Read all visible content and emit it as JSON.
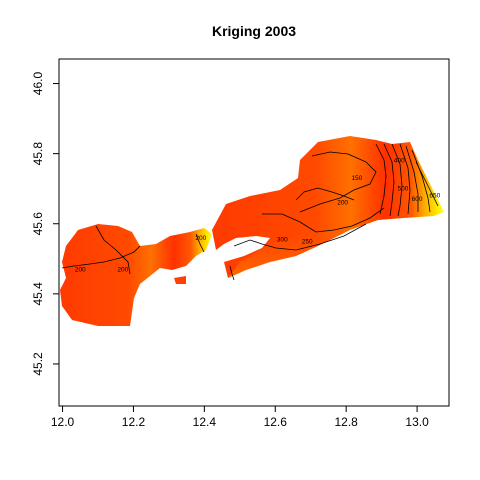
{
  "chart_data": {
    "type": "heatmap",
    "title": "Kriging 2003",
    "xlabel": "",
    "ylabel": "",
    "xlim": [
      11.99,
      13.09
    ],
    "ylim": [
      45.08,
      46.07
    ],
    "x_ticks": [
      12.0,
      12.2,
      12.4,
      12.6,
      12.8,
      13.0
    ],
    "x_tick_labels": [
      "12.0",
      "12.2",
      "12.4",
      "12.6",
      "12.8",
      "13.0"
    ],
    "y_ticks": [
      45.2,
      45.4,
      45.6,
      45.8,
      46.0
    ],
    "y_tick_labels": [
      "45.2",
      "45.4",
      "45.6",
      "45.8",
      "46.0"
    ],
    "grid": false,
    "colormap": [
      "#ff0000",
      "#ff5000",
      "#ff8c00",
      "#ffd000",
      "#ffff40"
    ],
    "contour_levels": [
      150,
      200,
      250,
      300,
      350,
      400,
      450,
      500,
      550,
      600,
      650
    ],
    "contour_labels": [
      {
        "text": "200",
        "x": 12.05,
        "y": 45.47
      },
      {
        "text": "200",
        "x": 12.17,
        "y": 45.47
      },
      {
        "text": "200",
        "x": 12.39,
        "y": 45.56
      },
      {
        "text": "150",
        "x": 12.83,
        "y": 45.73
      },
      {
        "text": "200",
        "x": 12.79,
        "y": 45.66
      },
      {
        "text": "250",
        "x": 12.69,
        "y": 45.55
      },
      {
        "text": "300",
        "x": 12.62,
        "y": 45.555
      },
      {
        "text": "400",
        "x": 12.95,
        "y": 45.78
      },
      {
        "text": "500",
        "x": 12.96,
        "y": 45.7
      },
      {
        "text": "600",
        "x": 13.0,
        "y": 45.67
      },
      {
        "text": "650",
        "x": 13.05,
        "y": 45.68
      }
    ]
  }
}
